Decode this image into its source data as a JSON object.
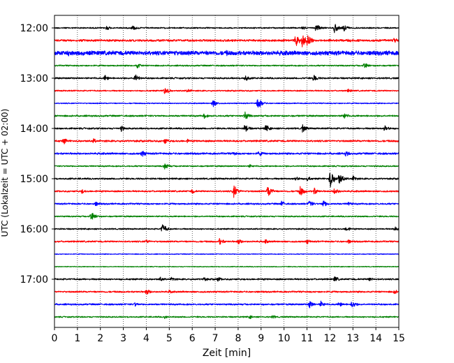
{
  "chart_data": {
    "type": "line",
    "xlabel": "Zeit  [min]",
    "ylabel": "UTC (Lokalzeit = UTC + 02:00)",
    "xlim": [
      0,
      15
    ],
    "x_ticks": [
      0,
      1,
      2,
      3,
      4,
      5,
      6,
      7,
      8,
      9,
      10,
      11,
      12,
      13,
      14,
      15
    ],
    "y_ticks": [
      "12:00",
      "13:00",
      "14:00",
      "15:00",
      "16:00",
      "17:00"
    ],
    "grid": "vertical-dotted",
    "trace_colors": [
      "#000000",
      "#ff0000",
      "#0000ff",
      "#008000"
    ],
    "traces": [
      {
        "start": "12:00",
        "amp": 0.25,
        "events": [
          [
            2.25,
            1.1
          ],
          [
            3.4,
            1.1
          ],
          [
            3.5,
            0.8
          ],
          [
            10.8,
            0.8
          ],
          [
            11.4,
            1.7
          ],
          [
            12.2,
            2.0
          ],
          [
            12.6,
            1.6
          ]
        ]
      },
      {
        "start": "12:15",
        "amp": 0.4,
        "events": [
          [
            10.5,
            2.4
          ],
          [
            10.8,
            3.5
          ],
          [
            11.0,
            2.5
          ],
          [
            12.8,
            1.1
          ],
          [
            14.8,
            1.2
          ]
        ]
      },
      {
        "start": "12:30",
        "amp": 0.8,
        "events": [
          [
            0.6,
            1.4
          ],
          [
            1.0,
            1.2
          ],
          [
            3.5,
            1.0
          ],
          [
            5.2,
            1.6
          ],
          [
            7.5,
            1.2
          ],
          [
            8.8,
            1.1
          ],
          [
            14.5,
            1.4
          ]
        ]
      },
      {
        "start": "12:45",
        "amp": 0.25,
        "events": [
          [
            3.6,
            1.2
          ],
          [
            13.5,
            1.5
          ]
        ]
      },
      {
        "start": "13:00",
        "amp": 0.3,
        "events": [
          [
            2.2,
            1.4
          ],
          [
            3.5,
            1.8
          ],
          [
            8.3,
            1.6
          ],
          [
            11.3,
            1.6
          ]
        ]
      },
      {
        "start": "13:15",
        "amp": 0.25,
        "events": [
          [
            4.8,
            1.8
          ],
          [
            5.8,
            1.0
          ],
          [
            12.8,
            0.8
          ]
        ]
      },
      {
        "start": "13:30",
        "amp": 0.2,
        "events": [
          [
            6.9,
            1.6
          ],
          [
            8.85,
            2.4
          ]
        ]
      },
      {
        "start": "13:45",
        "amp": 0.3,
        "events": [
          [
            6.5,
            1.2
          ],
          [
            8.3,
            1.8
          ],
          [
            12.6,
            1.4
          ]
        ]
      },
      {
        "start": "14:00",
        "amp": 0.3,
        "events": [
          [
            2.9,
            1.2
          ],
          [
            8.3,
            1.8
          ],
          [
            9.2,
            1.6
          ],
          [
            10.8,
            1.6
          ],
          [
            14.4,
            1.6
          ]
        ]
      },
      {
        "start": "14:15",
        "amp": 0.35,
        "events": [
          [
            0.4,
            1.4
          ],
          [
            1.7,
            1.0
          ],
          [
            4.8,
            1.4
          ],
          [
            5.8,
            0.8
          ]
        ]
      },
      {
        "start": "14:30",
        "amp": 0.35,
        "events": [
          [
            3.8,
            1.5
          ],
          [
            7.8,
            1.0
          ],
          [
            8.9,
            1.2
          ],
          [
            12.7,
            1.2
          ]
        ]
      },
      {
        "start": "14:45",
        "amp": 0.25,
        "events": [
          [
            4.8,
            1.5
          ],
          [
            8.5,
            0.8
          ]
        ]
      },
      {
        "start": "15:00",
        "amp": 0.3,
        "events": [
          [
            10.5,
            1.3
          ],
          [
            11.0,
            1.2
          ],
          [
            12.0,
            3.5
          ],
          [
            12.4,
            2.5
          ],
          [
            13.0,
            1.3
          ]
        ]
      },
      {
        "start": "15:15",
        "amp": 0.3,
        "events": [
          [
            1.2,
            1.0
          ],
          [
            6.0,
            1.0
          ],
          [
            7.8,
            2.8
          ],
          [
            9.3,
            2.8
          ],
          [
            10.7,
            2.2
          ],
          [
            11.3,
            1.6
          ],
          [
            12.2,
            1.7
          ]
        ]
      },
      {
        "start": "15:30",
        "amp": 0.3,
        "events": [
          [
            1.8,
            1.0
          ],
          [
            9.9,
            1.3
          ],
          [
            11.1,
            1.5
          ],
          [
            11.7,
            1.7
          ],
          [
            12.8,
            1.0
          ]
        ]
      },
      {
        "start": "15:45",
        "amp": 0.25,
        "events": [
          [
            1.6,
            2.2
          ]
        ]
      },
      {
        "start": "16:00",
        "amp": 0.25,
        "events": [
          [
            4.7,
            2.2
          ],
          [
            12.7,
            1.2
          ],
          [
            14.8,
            1.1
          ]
        ]
      },
      {
        "start": "16:15",
        "amp": 0.3,
        "events": [
          [
            4.0,
            1.0
          ],
          [
            7.2,
            1.5
          ],
          [
            8.0,
            1.3
          ],
          [
            9.2,
            0.9
          ],
          [
            11.0,
            1.0
          ],
          [
            12.8,
            0.9
          ]
        ]
      },
      {
        "start": "16:30",
        "amp": 0.15,
        "events": []
      },
      {
        "start": "16:45",
        "amp": 0.15,
        "events": []
      },
      {
        "start": "17:00",
        "amp": 0.3,
        "events": [
          [
            4.6,
            1.0
          ],
          [
            5.1,
            1.0
          ],
          [
            6.5,
            1.0
          ],
          [
            7.1,
            1.1
          ],
          [
            12.2,
            1.3
          ],
          [
            13.7,
            1.1
          ]
        ]
      },
      {
        "start": "17:15",
        "amp": 0.3,
        "events": [
          [
            4.0,
            1.4
          ],
          [
            5.0,
            0.8
          ],
          [
            14.8,
            1.0
          ]
        ]
      },
      {
        "start": "17:30",
        "amp": 0.3,
        "events": [
          [
            3.5,
            1.0
          ],
          [
            11.1,
            1.8
          ],
          [
            11.6,
            1.4
          ],
          [
            12.4,
            1.3
          ],
          [
            12.95,
            1.7
          ]
        ]
      },
      {
        "start": "17:45",
        "amp": 0.25,
        "events": [
          [
            4.8,
            0.8
          ],
          [
            8.5,
            0.8
          ],
          [
            9.5,
            0.8
          ]
        ]
      }
    ]
  }
}
